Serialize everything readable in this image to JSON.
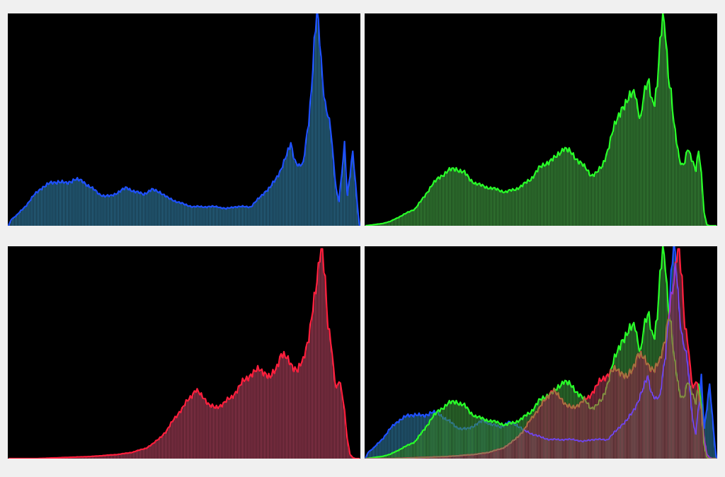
{
  "colors": {
    "background": "#f0f0f0",
    "plot_background": "#000000",
    "blue": "#1e50ff",
    "green": "#28ff28",
    "red": "#ff1e3c",
    "blue_fill": "#2b6d8f",
    "green_fill": "#3a8c3a",
    "red_fill": "#9a3a52",
    "overlay_blue_green": "#8a8a40",
    "overlay_green_red": "#7040ff"
  },
  "chart_data": [
    {
      "type": "bar",
      "channel": "blue",
      "xlim": [
        0,
        255
      ],
      "ylim": [
        0,
        100
      ],
      "grid": false,
      "bins": 256,
      "keypoints_x": [
        0,
        2,
        6,
        12,
        18,
        24,
        30,
        36,
        42,
        48,
        54,
        58,
        62,
        66,
        70,
        74,
        80,
        86,
        92,
        98,
        104,
        110,
        116,
        120,
        124,
        128,
        134,
        140,
        146,
        152,
        158,
        164,
        170,
        176,
        182,
        186,
        190,
        194,
        198,
        202,
        205,
        208,
        211,
        214,
        216,
        218,
        220,
        222,
        224,
        226,
        228,
        230,
        232,
        234,
        236,
        238,
        240,
        242,
        244,
        246,
        248,
        250,
        252,
        254,
        255
      ],
      "keypoints_y": [
        0,
        3,
        5,
        9,
        14,
        18,
        20,
        21,
        20,
        22,
        21,
        19,
        17,
        15,
        14,
        14,
        16,
        18,
        16,
        15,
        17,
        16,
        13,
        12,
        11,
        10,
        9,
        9,
        9,
        9,
        8,
        9,
        9,
        9,
        13,
        16,
        18,
        22,
        27,
        33,
        39,
        31,
        28,
        29,
        40,
        50,
        65,
        85,
        100,
        88,
        70,
        58,
        52,
        45,
        30,
        17,
        12,
        25,
        38,
        14,
        24,
        36,
        20,
        5,
        0
      ]
    },
    {
      "type": "bar",
      "channel": "green",
      "xlim": [
        0,
        255
      ],
      "ylim": [
        0,
        100
      ],
      "grid": false,
      "bins": 256,
      "keypoints_x": [
        0,
        6,
        12,
        18,
        24,
        30,
        36,
        42,
        48,
        54,
        60,
        66,
        72,
        76,
        80,
        84,
        90,
        96,
        102,
        108,
        114,
        120,
        126,
        132,
        138,
        144,
        150,
        156,
        160,
        164,
        168,
        172,
        176,
        180,
        186,
        190,
        194,
        196,
        198,
        200,
        202,
        204,
        206,
        208,
        210,
        212,
        214,
        216,
        218,
        220,
        222,
        224,
        226,
        228,
        230,
        232,
        234,
        236,
        238,
        240,
        242,
        244,
        246,
        248,
        250,
        252,
        255
      ],
      "keypoints_y": [
        0,
        0.5,
        1,
        2,
        4,
        6,
        8,
        13,
        19,
        23,
        26,
        27,
        25,
        22,
        20,
        19,
        18,
        17,
        16,
        17,
        19,
        22,
        27,
        30,
        32,
        37,
        34,
        30,
        27,
        24,
        25,
        28,
        36,
        45,
        56,
        58,
        63,
        64,
        55,
        50,
        60,
        66,
        69,
        60,
        58,
        66,
        85,
        100,
        93,
        71,
        62,
        48,
        40,
        32,
        29,
        30,
        36,
        33,
        30,
        27,
        36,
        24,
        6,
        0.5,
        0,
        0,
        0
      ]
    },
    {
      "type": "bar",
      "channel": "red",
      "xlim": [
        0,
        255
      ],
      "ylim": [
        0,
        100
      ],
      "grid": false,
      "bins": 256,
      "keypoints_x": [
        0,
        20,
        40,
        60,
        70,
        80,
        90,
        100,
        105,
        110,
        115,
        120,
        126,
        130,
        136,
        142,
        146,
        150,
        156,
        162,
        170,
        176,
        182,
        186,
        190,
        194,
        198,
        202,
        206,
        210,
        214,
        216,
        218,
        220,
        222,
        224,
        226,
        228,
        230,
        232,
        234,
        236,
        238,
        240,
        242,
        244,
        246,
        248,
        250,
        252,
        255
      ],
      "keypoints_y": [
        0,
        0,
        0.5,
        1,
        1.5,
        2,
        3,
        5,
        7,
        10,
        13,
        19,
        23,
        28,
        32,
        29,
        25,
        24,
        26,
        29,
        36,
        40,
        42,
        41,
        38,
        42,
        50,
        47,
        44,
        42,
        46,
        52,
        58,
        67,
        75,
        82,
        96,
        100,
        85,
        62,
        55,
        42,
        33,
        38,
        32,
        22,
        9,
        2,
        0.5,
        0,
        0
      ]
    },
    {
      "type": "bar",
      "overlay": true,
      "channels": [
        "blue",
        "green",
        "red"
      ],
      "xlim": [
        0,
        255
      ],
      "ylim": [
        0,
        100
      ],
      "grid": false,
      "bins": 256
    }
  ]
}
